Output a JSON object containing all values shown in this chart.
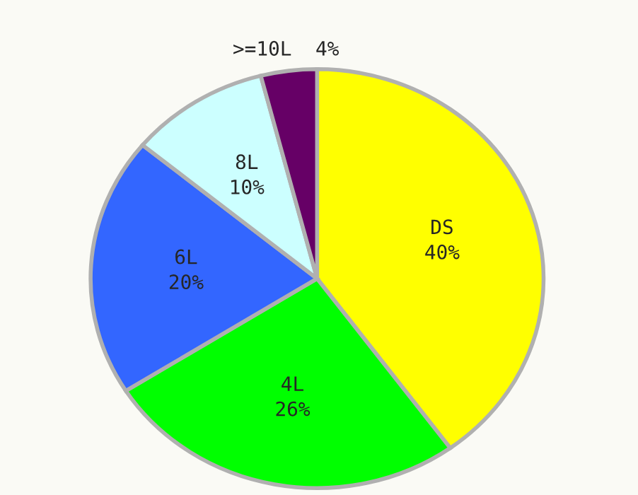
{
  "chart_data": {
    "type": "pie",
    "categories": [
      "DS",
      "4L",
      "6L",
      "8L",
      ">=10L"
    ],
    "values": [
      40,
      26,
      20,
      10,
      4
    ],
    "value_labels": [
      "40%",
      "26%",
      "20%",
      "10%",
      "4%"
    ],
    "colors": [
      "#ffff00",
      "#00ff00",
      "#3366ff",
      "#ccffff",
      "#660066"
    ]
  }
}
